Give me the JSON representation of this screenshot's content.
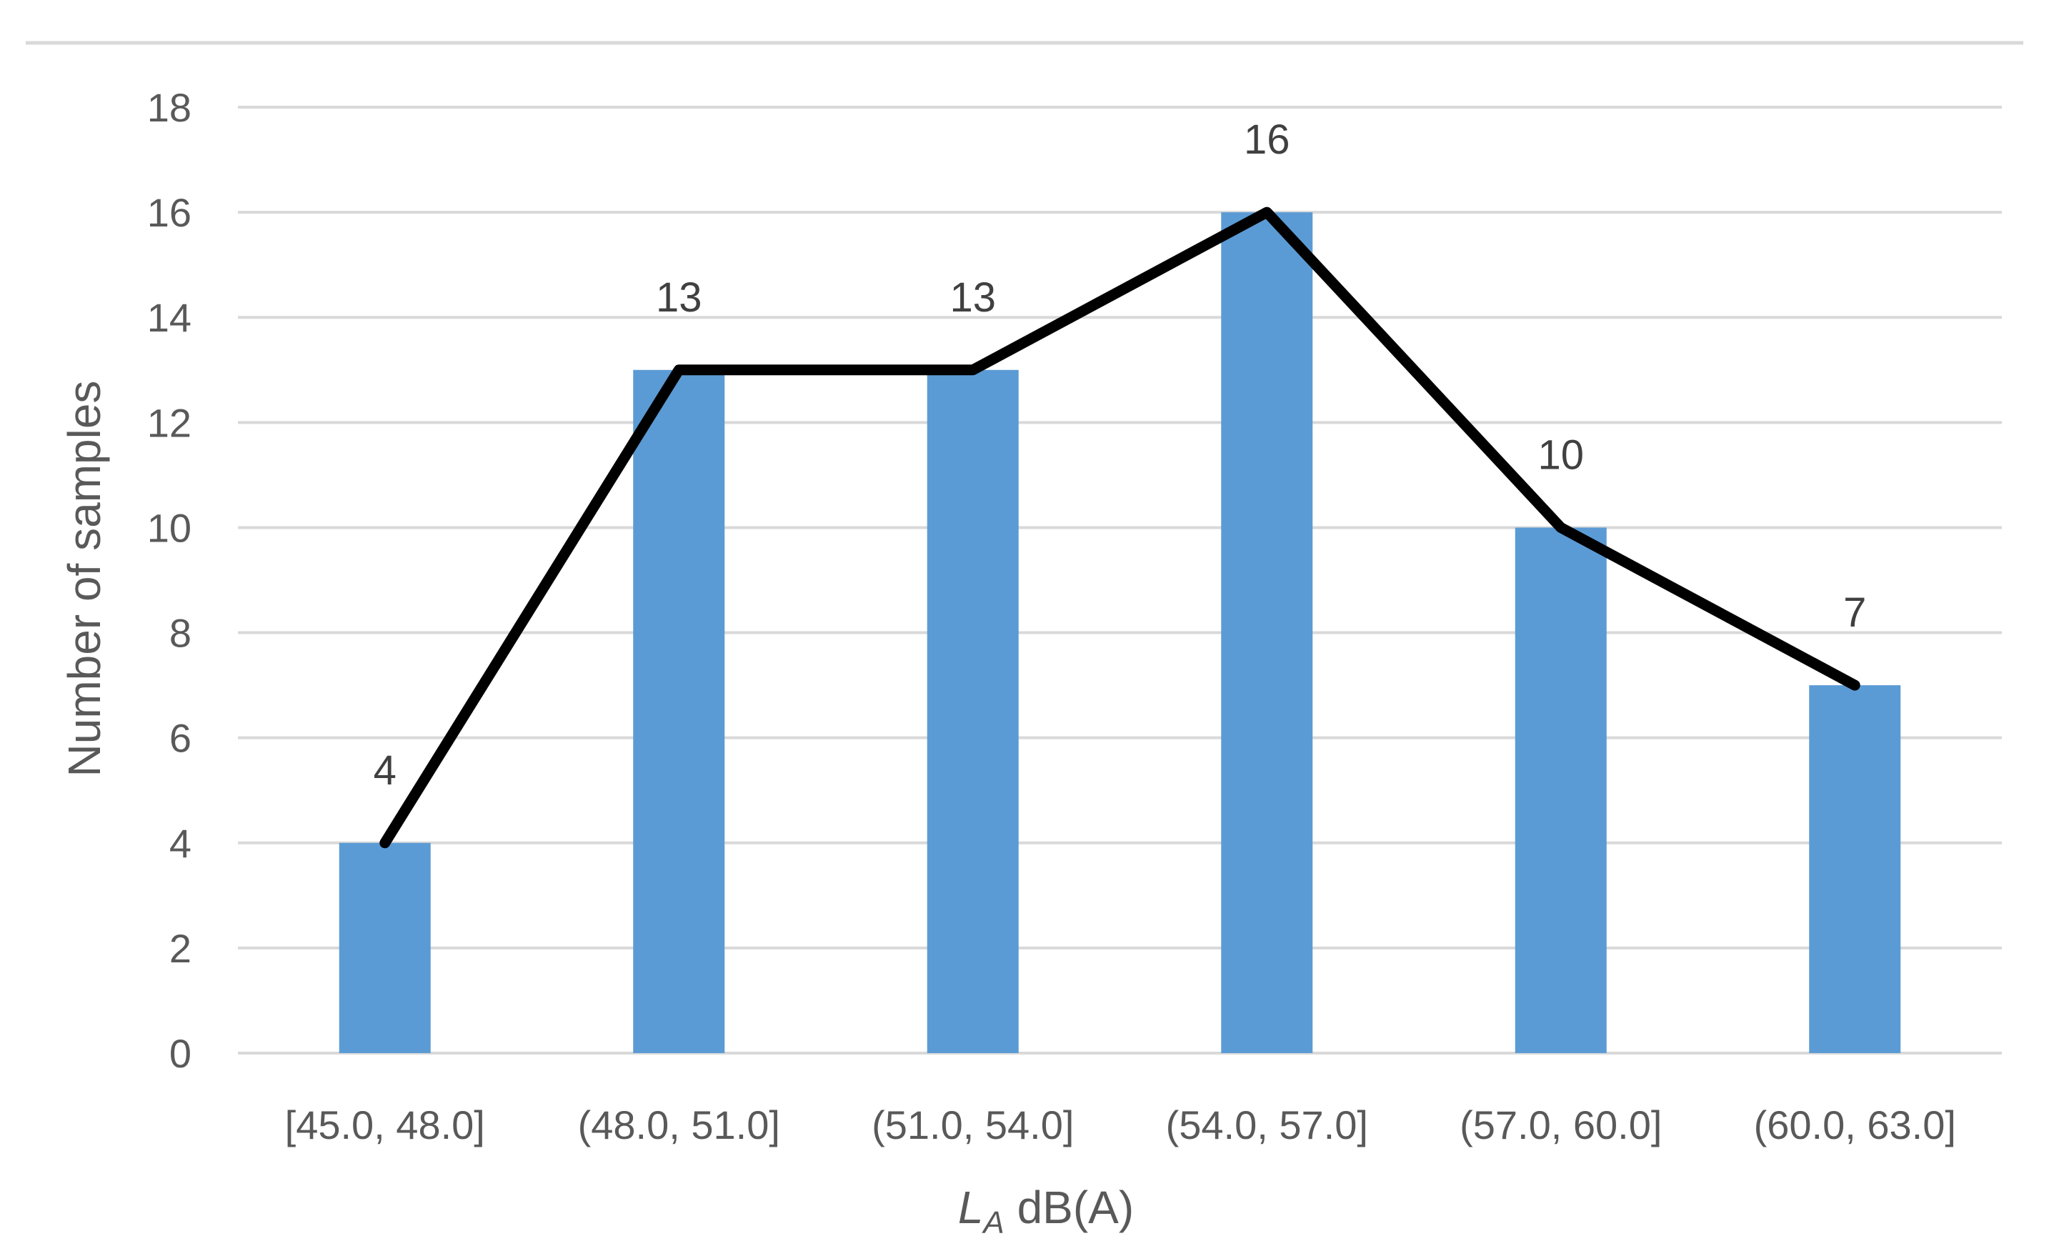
{
  "chart_data": {
    "type": "bar",
    "categories": [
      "[45.0, 48.0]",
      "(48.0, 51.0]",
      "(51.0, 54.0]",
      "(54.0, 57.0]",
      "(57.0, 60.0]",
      "(60.0, 63.0]"
    ],
    "values": [
      4,
      13,
      13,
      16,
      10,
      7
    ],
    "data_labels": [
      "4",
      "13",
      "13",
      "16",
      "10",
      "7"
    ],
    "overlay_line": {
      "type": "line",
      "values": [
        4,
        13,
        13,
        16,
        10,
        7
      ],
      "color": "#000000"
    },
    "title": "",
    "xlabel": {
      "symbol": "L",
      "subscript": "A",
      "unit": " dB(A)"
    },
    "ylabel": "Number of samples",
    "ylim": [
      0,
      18
    ],
    "yticks": [
      "0",
      "2",
      "4",
      "6",
      "8",
      "10",
      "12",
      "14",
      "16",
      "18"
    ],
    "grid": true,
    "legend": "none",
    "colors": {
      "bar": "#5B9BD5",
      "line": "#000000",
      "grid": "#D9D9D9",
      "text": "#595959"
    }
  }
}
